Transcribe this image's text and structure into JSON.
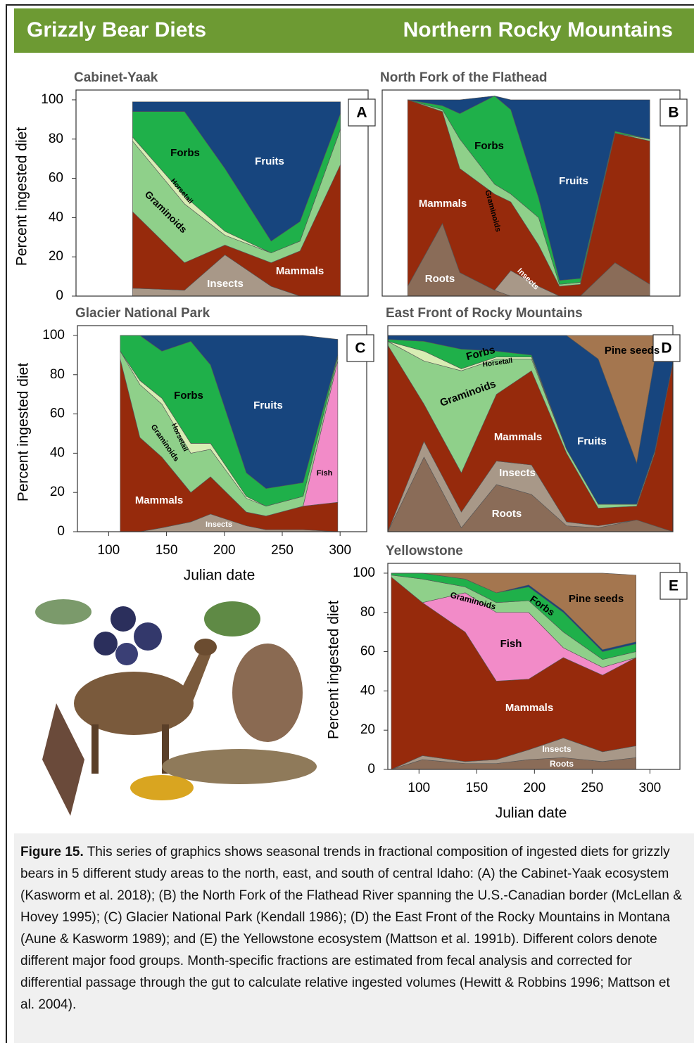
{
  "header": {
    "left": "Grizzly Bear Diets",
    "right": "Northern Rocky Mountains"
  },
  "chart_data": [
    {
      "type": "area",
      "title": "Cabinet-Yaak",
      "panel": "A",
      "ylabel": "Percent ingested diet",
      "xlim": [
        71,
        324
      ],
      "ylim": [
        0,
        105
      ],
      "yticks": [
        0,
        20,
        40,
        60,
        80,
        100
      ],
      "x": [
        120,
        165,
        200,
        240,
        265,
        300
      ],
      "series": [
        {
          "name": "Insects",
          "color": "#a89888",
          "values": [
            4,
            3,
            21,
            5,
            0,
            0
          ]
        },
        {
          "name": "Mammals",
          "color": "#962a0c",
          "values": [
            39,
            14,
            5,
            12,
            23,
            67
          ]
        },
        {
          "name": "Graminoids",
          "color": "#8fd08a",
          "values": [
            36,
            30,
            5,
            5,
            5,
            18
          ]
        },
        {
          "name": "Horsetail",
          "color": "#d8edb4",
          "values": [
            2,
            4,
            2,
            0,
            0,
            0
          ]
        },
        {
          "name": "Forbs",
          "color": "#1fb04a",
          "values": [
            13,
            43,
            32,
            6,
            10,
            8
          ]
        },
        {
          "name": "Fruits",
          "color": "#17457e",
          "values": [
            5,
            5,
            34,
            71,
            61,
            6
          ]
        }
      ]
    },
    {
      "type": "area",
      "title": "North Fork of the Flathead",
      "panel": "B",
      "xlim": [
        73,
        330
      ],
      "ylim": [
        0,
        105
      ],
      "x": [
        95,
        125,
        140,
        170,
        184,
        208,
        226,
        244,
        274,
        304
      ],
      "series": [
        {
          "name": "Roots",
          "color": "#8a6c58",
          "values": [
            5,
            37,
            12,
            3,
            0,
            0,
            0,
            0,
            17,
            6
          ]
        },
        {
          "name": "Insects",
          "color": "#a89888",
          "values": [
            0,
            0,
            0,
            0,
            13,
            5,
            0,
            0,
            0,
            0
          ]
        },
        {
          "name": "Mammals",
          "color": "#962a0c",
          "values": [
            95,
            57,
            53,
            49,
            35,
            21,
            5,
            6,
            66,
            73
          ]
        },
        {
          "name": "Graminoids",
          "color": "#8fd08a",
          "values": [
            0,
            1,
            15,
            5,
            4,
            14,
            1,
            1,
            0,
            1
          ]
        },
        {
          "name": "Forbs",
          "color": "#1fb04a",
          "values": [
            0,
            2,
            13,
            45,
            43,
            10,
            2,
            2,
            1,
            0
          ]
        },
        {
          "name": "Fruits",
          "color": "#17457e",
          "values": [
            0,
            3,
            7,
            0,
            5,
            50,
            92,
            91,
            16,
            20
          ]
        }
      ]
    },
    {
      "type": "area",
      "title": "Glacier National Park",
      "panel": "C",
      "ylabel": "Percent ingested diet",
      "xlabel": "Julian date",
      "xlim": [
        73,
        323
      ],
      "ylim": [
        0,
        105
      ],
      "yticks": [
        0,
        20,
        40,
        60,
        80,
        100
      ],
      "xticks": [
        100,
        150,
        200,
        250,
        300
      ],
      "x": [
        110,
        127,
        146,
        171,
        188,
        219,
        236,
        268,
        298
      ],
      "series": [
        {
          "name": "Insects",
          "color": "#a89888",
          "values": [
            0,
            0,
            2,
            5,
            9,
            3,
            1,
            1,
            0
          ]
        },
        {
          "name": "Mammals",
          "color": "#962a0c",
          "values": [
            88,
            48,
            36,
            15,
            19,
            7,
            7,
            12,
            15
          ]
        },
        {
          "name": "Fish",
          "color": "#f28bc8",
          "values": [
            0,
            0,
            0,
            0,
            0,
            0,
            0,
            0,
            72
          ]
        },
        {
          "name": "Graminoids",
          "color": "#8fd08a",
          "values": [
            4,
            27,
            27,
            20,
            14,
            7,
            5,
            5,
            2
          ]
        },
        {
          "name": "Horsetail",
          "color": "#d8edb4",
          "values": [
            0,
            2,
            3,
            5,
            3,
            1,
            0,
            0,
            0
          ]
        },
        {
          "name": "Forbs",
          "color": "#1fb04a",
          "values": [
            8,
            23,
            24,
            52,
            40,
            12,
            9,
            7,
            1
          ]
        },
        {
          "name": "Fruits",
          "color": "#17457e",
          "values": [
            0,
            0,
            8,
            3,
            15,
            70,
            78,
            75,
            8
          ]
        }
      ]
    },
    {
      "type": "area",
      "title": "East Front of Rocky Mountains",
      "panel": "D",
      "xlim": [
        73,
        325
      ],
      "ylim": [
        0,
        105
      ],
      "x": [
        73,
        105,
        138,
        169,
        200,
        231,
        259,
        293,
        309,
        325
      ],
      "series": [
        {
          "name": "Roots",
          "color": "#8a6c58",
          "values": [
            0,
            38,
            2,
            24,
            19,
            3,
            2,
            6,
            3,
            0
          ]
        },
        {
          "name": "Insects",
          "color": "#a89888",
          "values": [
            0,
            8,
            8,
            12,
            15,
            2,
            1,
            0,
            0,
            0
          ]
        },
        {
          "name": "Mammals",
          "color": "#962a0c",
          "values": [
            95,
            19,
            20,
            34,
            48,
            35,
            9,
            7,
            37,
            86
          ]
        },
        {
          "name": "Graminoids",
          "color": "#8fd08a",
          "values": [
            2,
            22,
            52,
            18,
            6,
            2,
            2,
            1,
            1,
            0
          ]
        },
        {
          "name": "Horsetail",
          "color": "#d8edb4",
          "values": [
            0,
            5,
            1,
            1,
            1,
            0,
            0,
            0,
            0,
            0
          ]
        },
        {
          "name": "Forbs",
          "color": "#1fb04a",
          "values": [
            1,
            5,
            10,
            3,
            1,
            0,
            0,
            0,
            0,
            0
          ]
        },
        {
          "name": "Fruits",
          "color": "#17457e",
          "values": [
            2,
            3,
            7,
            8,
            10,
            58,
            74,
            21,
            47,
            4
          ]
        },
        {
          "name": "Pine seeds",
          "color": "#a4764f",
          "values": [
            0,
            0,
            0,
            0,
            0,
            0,
            12,
            65,
            12,
            10
          ]
        }
      ]
    },
    {
      "type": "area",
      "title": "Yellowstone",
      "panel": "E",
      "ylabel": "Percent ingested diet",
      "xlabel": "Julian date",
      "xlim": [
        73,
        326
      ],
      "ylim": [
        0,
        105
      ],
      "yticks": [
        0,
        20,
        40,
        60,
        80,
        100
      ],
      "xticks": [
        100,
        150,
        200,
        250,
        300
      ],
      "x": [
        76,
        103,
        140,
        167,
        195,
        225,
        259,
        288
      ],
      "series": [
        {
          "name": "Roots",
          "color": "#8a6c58",
          "values": [
            0,
            5,
            3,
            3,
            5,
            6,
            4,
            6
          ]
        },
        {
          "name": "Insects",
          "color": "#a89888",
          "values": [
            0,
            2,
            1,
            2,
            5,
            10,
            5,
            6
          ]
        },
        {
          "name": "Mammals",
          "color": "#962a0c",
          "values": [
            98,
            78,
            66,
            40,
            36,
            41,
            39,
            45
          ]
        },
        {
          "name": "Fish",
          "color": "#f28bc8",
          "values": [
            0,
            0,
            20,
            35,
            34,
            5,
            4,
            0
          ]
        },
        {
          "name": "Graminoids",
          "color": "#8fd08a",
          "values": [
            1,
            12,
            3,
            5,
            6,
            8,
            4,
            3
          ]
        },
        {
          "name": "Forbs",
          "color": "#1fb04a",
          "values": [
            1,
            3,
            4,
            5,
            7,
            10,
            4,
            4
          ]
        },
        {
          "color": "#17457e",
          "values": [
            0,
            0,
            0,
            0,
            1,
            1,
            1,
            1
          ]
        },
        {
          "name": "Pine seeds",
          "color": "#a4764f",
          "values": [
            0,
            0,
            3,
            10,
            6,
            19,
            39,
            34
          ]
        }
      ]
    }
  ],
  "caption": {
    "label": "Figure 15.",
    "text": "This series of graphics shows seasonal trends in fractional composition of ingested diets for grizzly bears in 5 different study areas to the north, east, and south of central Idaho: (A) the Cabinet-Yaak ecosystem (Kasworm et al. 2018); (B) the North Fork of the Flathead River spanning the U.S.-Canadian border (McLellan & Hovey 1995); (C) Glacier National Park (Kendall 1986); (D) the East Front of the Rocky Mountains in Montana (Aune & Kasworm 1989); and (E) the Yellowstone ecosystem (Mattson et al. 1991b). Different colors denote different major food groups. Month-specific fractions are estimated from fecal analysis and corrected for differential passage through the gut to calculate relative ingested volumes (Hewitt & Robbins 1996; Mattson et al. 2004)."
  }
}
